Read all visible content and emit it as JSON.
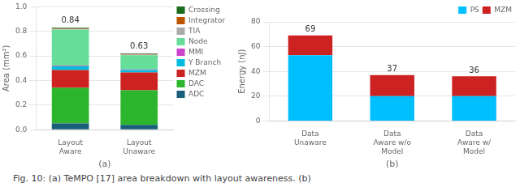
{
  "caption": "Fig. 10: (a) TeMPO [17] area breakdown with layout awareness. (b)",
  "chart_data": [
    {
      "type": "bar",
      "stacked": true,
      "categories": [
        "Layout\nAware",
        "Layout\nUnaware"
      ],
      "series": [
        {
          "name": "ADC",
          "color": "#1a5f7a",
          "values": [
            0.05,
            0.04
          ]
        },
        {
          "name": "DAC",
          "color": "#2db52d",
          "values": [
            0.29,
            0.28
          ]
        },
        {
          "name": "MZM",
          "color": "#cc2222",
          "values": [
            0.145,
            0.145
          ]
        },
        {
          "name": "Y Branch",
          "color": "#00bbdd",
          "values": [
            0.03,
            0.02
          ]
        },
        {
          "name": "MMI",
          "color": "#cc44cc",
          "values": [
            0.005,
            0.005
          ]
        },
        {
          "name": "Node",
          "color": "#66dd99",
          "values": [
            0.295,
            0.115
          ]
        },
        {
          "name": "TIA",
          "color": "#aaaaaa",
          "values": [
            0.005,
            0.005
          ]
        },
        {
          "name": "Integrator",
          "color": "#bb5500",
          "values": [
            0.005,
            0.005
          ]
        },
        {
          "name": "Crossing",
          "color": "#1a6b1a",
          "values": [
            0.005,
            0.005
          ]
        }
      ],
      "totals": [
        0.84,
        0.63
      ],
      "ylabel": "Area (mm²)",
      "xlabel": "(a)",
      "ylim": [
        0,
        1.0
      ],
      "yticks": [
        {
          "value": 0,
          "label": "0.0"
        },
        0.2,
        0.4,
        0.6,
        0.8,
        {
          "value": 1,
          "label": "1.0"
        }
      ],
      "grid": true,
      "legend": "right"
    },
    {
      "type": "bar",
      "stacked": true,
      "categories": [
        "Data\nUnaware",
        "Data\nAware w/o\nModel",
        "Data\nAware w/\nModel"
      ],
      "series": [
        {
          "name": "PS",
          "color": "#00bfff",
          "values": [
            53,
            20,
            20
          ]
        },
        {
          "name": "MZM",
          "color": "#cc2222",
          "values": [
            16,
            17,
            16
          ]
        }
      ],
      "totals": [
        69,
        37,
        36
      ],
      "ylabel": "Energy (nJ)",
      "xlabel": "(b)",
      "ylim": [
        0,
        80
      ],
      "yticks": [
        0,
        20,
        40,
        60,
        80
      ],
      "grid": true,
      "legend": "upper right"
    }
  ]
}
